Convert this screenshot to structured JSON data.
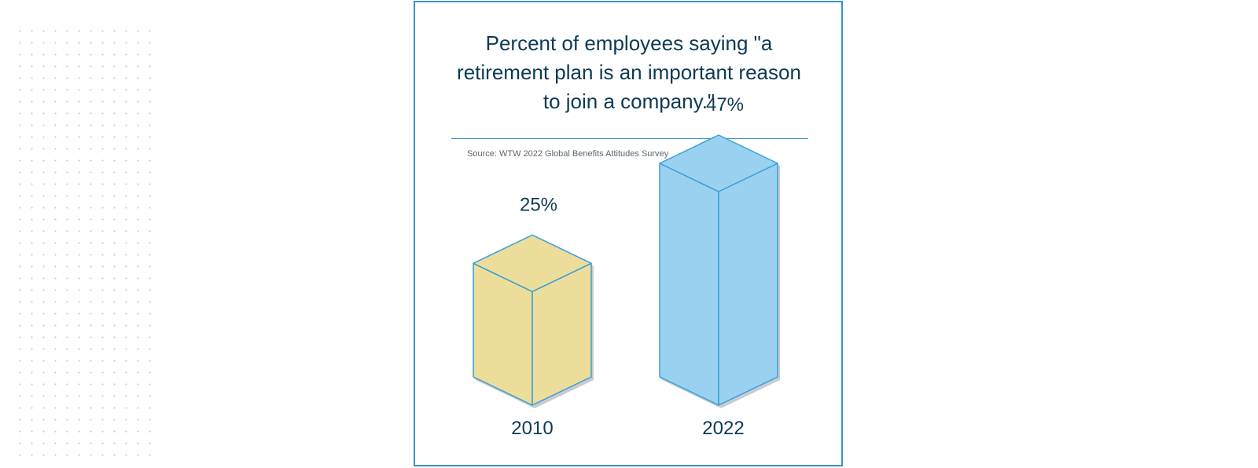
{
  "chart_data": {
    "type": "bar",
    "title": "Percent of employees saying \"a retirement plan is an important reason to join a company.\"",
    "source": "Source: WTW 2022 Global Benefits Attitudes Survey",
    "categories": [
      "2010",
      "2022"
    ],
    "values": [
      25,
      47
    ],
    "value_labels": [
      "25%",
      "47%"
    ],
    "unit": "%",
    "colors": {
      "bar_2010": "#eddd9b",
      "bar_2022": "#9ad1f0",
      "edge": "#3a9fd8",
      "shadow": "#c2c6cc",
      "text": "#0d3a54",
      "frame": "#3a93c9"
    }
  }
}
